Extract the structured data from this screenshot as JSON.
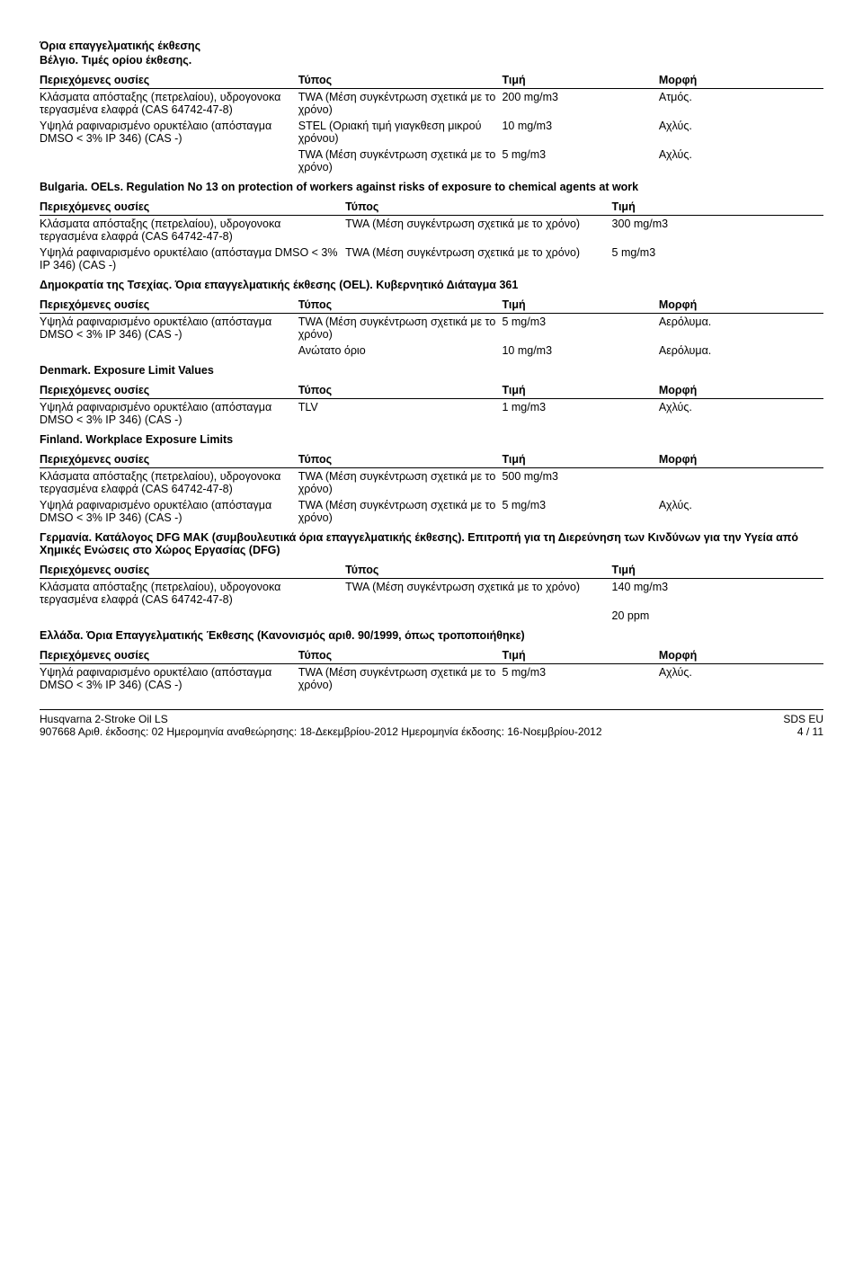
{
  "header": {
    "main_title": "Όρια επαγγελματικής έκθεσης",
    "belgium_title": "Βέλγιο. Τιμές ορίου έκθεσης."
  },
  "cols4": {
    "substance": "Περιεχόμενες ουσίες",
    "type": "Τύπος",
    "value": "Τιμή",
    "form": "Μορφή"
  },
  "cols3": {
    "substance": "Περιεχόμενες ουσίες",
    "type": "Τύπος",
    "value": "Τιμή"
  },
  "substances": {
    "distillates": "Κλάσματα απόσταξης (πετρελαίου), υδρογονοκα τεργασμένα ελαφρά (CAS 64742-47-8)",
    "mineral_oil": "Υψηλά ραφιναρισμένο ορυκτέλαιο (απόσταγμα DMSO < 3% IP 346) (CAS -)"
  },
  "measure": {
    "twa": "TWA (Μέση συγκέντρωση σχετικά με το χρόνο)",
    "stel": "STEL (Οριακή τιμή γιαγκθεση μικρού χρόνου)",
    "ceiling": "Ανώτατο όριο",
    "tlv": "TLV"
  },
  "belgium": {
    "r1_val": "200 mg/m3",
    "r1_form": "Ατμός.",
    "r2_val": "10 mg/m3",
    "r2_form": "Αχλύς.",
    "r3_val": "5 mg/m3",
    "r3_form": "Αχλύς."
  },
  "bulgaria": {
    "title": "Bulgaria. OELs. Regulation No 13 on protection of workers against risks of exposure to chemical agents at work",
    "r1_val": "300 mg/m3",
    "r2_val": "5 mg/m3"
  },
  "czech": {
    "title": "Δημοκρατία της Τσεχίας. Όρια επαγγελματικής έκθεσης (OEL). Κυβερνητικό Διάταγμα 361",
    "r1_val": "5 mg/m3",
    "r1_form": "Αερόλυμα.",
    "r2_val": "10 mg/m3",
    "r2_form": "Αερόλυμα."
  },
  "denmark": {
    "title": "Denmark. Exposure Limit Values",
    "r1_val": "1 mg/m3",
    "r1_form": "Αχλύς."
  },
  "finland": {
    "title": "Finland. Workplace Exposure Limits",
    "r1_val": "500 mg/m3",
    "r2_val": "5 mg/m3",
    "r2_form": "Αχλύς."
  },
  "germany": {
    "title": "Γερμανία. Κατάλογος DFG MAK (συμβουλευτικά όρια επαγγελματικής έκθεσης). Επιτροπή για τη Διερεύνηση των Κινδύνων για την Υγεία από Χημικές Ενώσεις στο Χώρος Εργασίας (DFG)",
    "r1_val": "140 mg/m3",
    "r2_val": "20 ppm"
  },
  "greece": {
    "title": "Ελλάδα. Όρια Επαγγελματικής Έκθεσης (Κανονισμός αριθ. 90/1999, όπως τροποποιήθηκε)",
    "r1_val": "5 mg/m3",
    "r1_form": "Αχλύς."
  },
  "footer": {
    "product": "Husqvarna 2-Stroke Oil LS",
    "id_line": "907668   Αριθ. έκδοσης: 02   Ημερομηνία αναθεώρησης: 18-Δεκεμβρίου-2012   Ημερομηνία έκδοσης: 16-Νοεμβρίου-2012",
    "sds": "SDS EU",
    "page": "4 / 11"
  }
}
